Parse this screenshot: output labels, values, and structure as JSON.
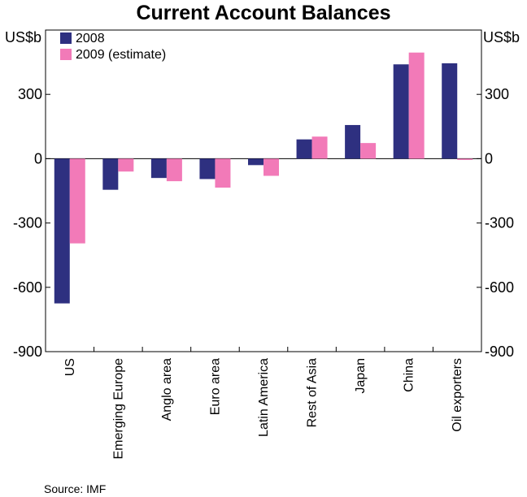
{
  "chart_data": {
    "type": "bar",
    "title": "Current Account Balances",
    "ylabel_left": "US$b",
    "ylabel_right": "US$b",
    "ylim": [
      -900,
      600
    ],
    "yticks": [
      -900,
      -600,
      -300,
      0,
      300
    ],
    "categories": [
      "US",
      "Emerging Europe",
      "Anglo area",
      "Euro area",
      "Latin America",
      "Rest of Asia",
      "Japan",
      "China",
      "Oil exporters"
    ],
    "series": [
      {
        "name": "2008",
        "color": "#2e3080",
        "values": [
          -675,
          -145,
          -90,
          -95,
          -30,
          90,
          157,
          440,
          445
        ]
      },
      {
        "name": "2009 (estimate)",
        "color": "#f27ab8",
        "values": [
          -395,
          -60,
          -105,
          -135,
          -80,
          103,
          73,
          495,
          -5
        ]
      }
    ],
    "legend_position": "top-left",
    "source": "Source: IMF"
  }
}
